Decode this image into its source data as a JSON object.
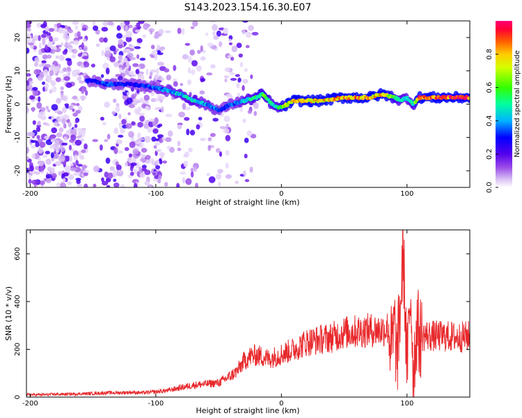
{
  "figure": {
    "title": "S143.2023.154.16.30.E07"
  },
  "chart_data": [
    {
      "type": "heatmap",
      "xlabel": "Height of straight line (km)",
      "ylabel": "Frequency (Hz)",
      "xlim": [
        -203,
        150
      ],
      "ylim": [
        -25,
        25
      ],
      "x_ticks": [
        -200,
        -100,
        0,
        100
      ],
      "y_ticks": [
        -20,
        -10,
        0,
        10,
        20
      ],
      "colorbar": {
        "label": "Normalized spectral amplitude",
        "range": [
          0,
          1
        ],
        "ticks": [
          0.0,
          0.2,
          0.4,
          0.6,
          0.8
        ],
        "colormap": [
          "#ffffff",
          "#c9a6f0",
          "#8e2de2",
          "#5500ee",
          "#0000ff",
          "#00c8ff",
          "#00ff80",
          "#7fff00",
          "#ffff00",
          "#ff8000",
          "#ff0000",
          "#ff0066"
        ]
      },
      "ridge": {
        "description_free": true,
        "x": [
          -150,
          -140,
          -120,
          -100,
          -90,
          -80,
          -70,
          -60,
          -50,
          -45,
          -40,
          -30,
          -20,
          -15,
          -10,
          -5,
          0,
          10,
          30,
          50,
          70,
          80,
          90,
          95,
          100,
          105,
          110,
          130,
          150
        ],
        "frequency": [
          7,
          6,
          6,
          5,
          4,
          3,
          1,
          0,
          -2,
          -1,
          0,
          1,
          2,
          3,
          1,
          -1,
          -1,
          1,
          1,
          2,
          2,
          3,
          2,
          1,
          2,
          0,
          2,
          2,
          2
        ],
        "amplitude": [
          0.3,
          0.35,
          0.3,
          0.35,
          0.4,
          0.45,
          0.5,
          0.4,
          0.35,
          0.3,
          0.35,
          0.45,
          0.55,
          0.6,
          0.55,
          0.5,
          0.65,
          0.85,
          0.8,
          0.85,
          0.85,
          0.8,
          0.6,
          0.5,
          0.45,
          0.5,
          0.95,
          0.95,
          0.95
        ]
      }
    },
    {
      "type": "line",
      "xlabel": "Height of straight line (km)",
      "ylabel": "SNR (10 * v/v)",
      "xlim": [
        -203,
        150
      ],
      "ylim": [
        0,
        700
      ],
      "x_ticks": [
        -200,
        -100,
        0,
        100
      ],
      "y_ticks": [
        0,
        200,
        400,
        600
      ],
      "series": [
        {
          "color": "#e8282b",
          "x": [
            -203,
            -190,
            -180,
            -170,
            -160,
            -150,
            -140,
            -130,
            -120,
            -110,
            -100,
            -90,
            -80,
            -70,
            -60,
            -50,
            -45,
            -40,
            -35,
            -30,
            -25,
            -20,
            -15,
            -10,
            -5,
            0,
            10,
            20,
            30,
            40,
            50,
            60,
            70,
            80,
            85,
            88,
            90,
            92,
            95,
            97,
            100,
            103,
            105,
            108,
            110,
            115,
            120,
            130,
            140,
            150
          ],
          "y": [
            10,
            10,
            12,
            12,
            14,
            15,
            18,
            18,
            20,
            18,
            22,
            28,
            40,
            50,
            55,
            60,
            75,
            90,
            110,
            150,
            170,
            175,
            170,
            160,
            170,
            180,
            200,
            230,
            240,
            250,
            270,
            275,
            280,
            280,
            290,
            200,
            300,
            150,
            400,
            620,
            120,
            450,
            100,
            300,
            250,
            260,
            255,
            255,
            250,
            255
          ]
        }
      ]
    }
  ]
}
